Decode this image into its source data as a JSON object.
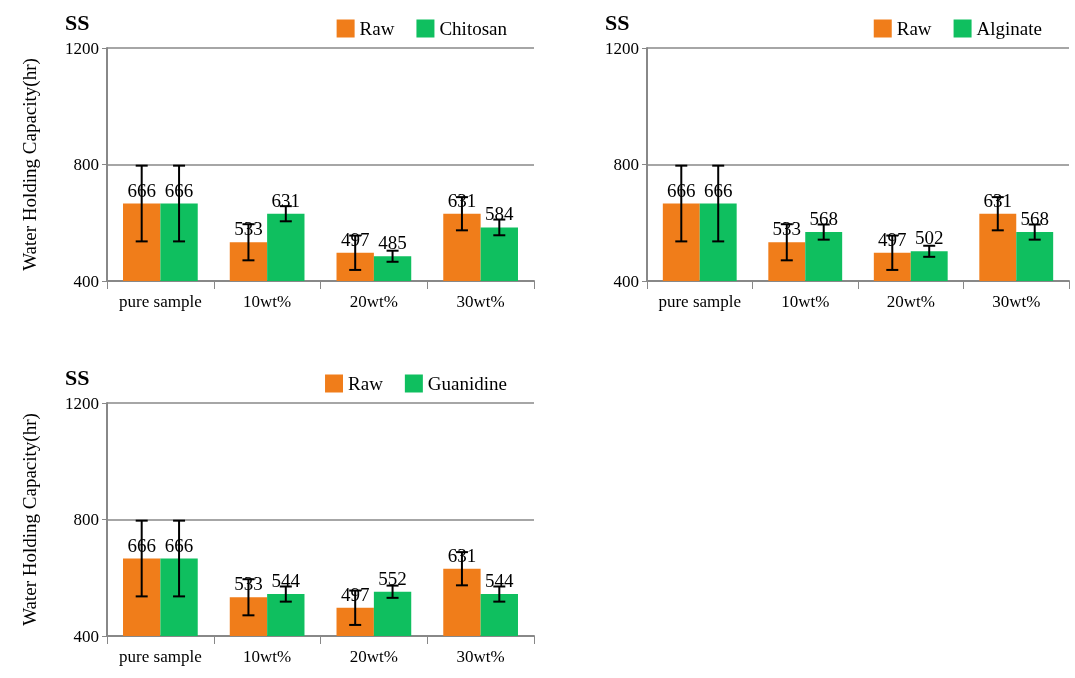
{
  "chart_data": [
    {
      "type": "bar",
      "title": "SS",
      "ylabel": "Water Holding Capacity(hr)",
      "categories": [
        "pure sample",
        "10wt%",
        "20wt%",
        "30wt%"
      ],
      "ylim": [
        400,
        1200
      ],
      "yticks": [
        400,
        800,
        1200
      ],
      "grid": "y",
      "legend": "top right",
      "data_labels": true,
      "series": [
        {
          "name": "Raw",
          "color": "#f07d1a",
          "values": [
            666,
            533,
            497,
            631
          ],
          "errors": [
            130,
            62,
            59,
            57
          ]
        },
        {
          "name": "Chitosan",
          "color": "#0fbf5f",
          "values": [
            666,
            631,
            485,
            584
          ],
          "errors": [
            130,
            26,
            19,
            27
          ]
        }
      ]
    },
    {
      "type": "bar",
      "title": "SS",
      "categories": [
        "pure sample",
        "10wt%",
        "20wt%",
        "30wt%"
      ],
      "ylim": [
        400,
        1200
      ],
      "yticks": [
        400,
        800,
        1200
      ],
      "grid": "y",
      "legend": "top right",
      "data_labels": true,
      "series": [
        {
          "name": "Raw",
          "color": "#f07d1a",
          "values": [
            666,
            533,
            497,
            631
          ],
          "errors": [
            130,
            62,
            59,
            57
          ]
        },
        {
          "name": "Alginate",
          "color": "#0fbf5f",
          "values": [
            666,
            568,
            502,
            568
          ],
          "errors": [
            130,
            26,
            19,
            26
          ]
        }
      ]
    },
    {
      "type": "bar",
      "title": "SS",
      "ylabel": "Water Holding Capacity(hr)",
      "categories": [
        "pure sample",
        "10wt%",
        "20wt%",
        "30wt%"
      ],
      "ylim": [
        400,
        1200
      ],
      "yticks": [
        400,
        800,
        1200
      ],
      "grid": "y",
      "legend": "top right",
      "data_labels": true,
      "series": [
        {
          "name": "Raw",
          "color": "#f07d1a",
          "values": [
            666,
            533,
            497,
            631
          ],
          "errors": [
            130,
            62,
            59,
            57
          ]
        },
        {
          "name": "Guanidine",
          "color": "#0fbf5f",
          "values": [
            666,
            544,
            552,
            544
          ],
          "errors": [
            130,
            26,
            21,
            26
          ]
        }
      ]
    }
  ]
}
